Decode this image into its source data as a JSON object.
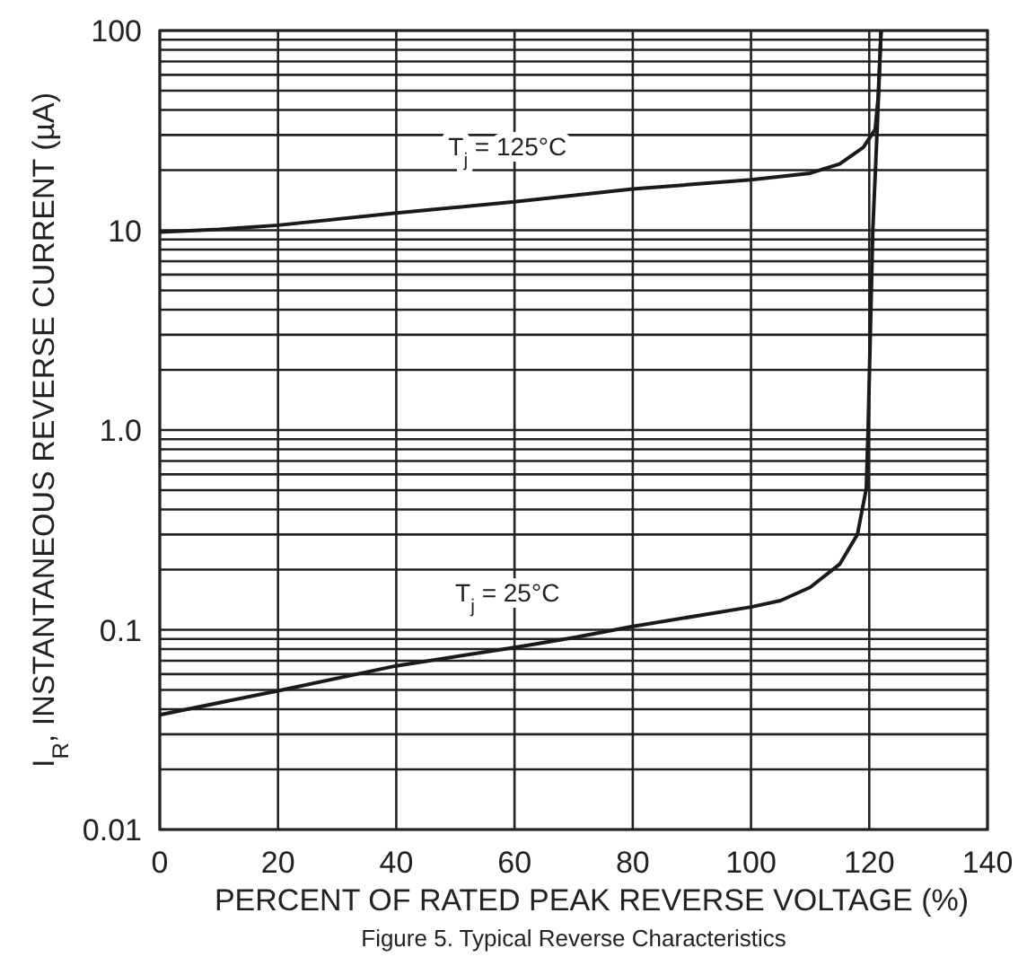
{
  "chart_data": {
    "type": "line",
    "xlabel": "PERCENT OF RATED PEAK REVERSE VOLTAGE (%)",
    "ylabel": "I$_{R}$, INSTANTANEOUS REVERSE CURRENT (µA)",
    "log": "y",
    "grid": true,
    "xlim": [
      0,
      140
    ],
    "ylim": [
      0.01,
      100
    ],
    "xticks": [
      0,
      20,
      40,
      60,
      80,
      100,
      120,
      140
    ],
    "yticks": [
      0.01,
      0.1,
      {
        "value": 1,
        "label": "1.0"
      },
      10,
      100
    ],
    "line_style": "solid",
    "marker": "none",
    "series": [
      {
        "name": "T$_{j}$ = 125°C",
        "color": "#1a1a1a",
        "x": [
          0,
          10,
          20,
          40,
          60,
          80,
          100,
          110,
          115,
          119,
          121,
          121.5,
          122
        ],
        "values": [
          9.8,
          10.1,
          10.6,
          12.2,
          13.9,
          16.1,
          17.9,
          19.3,
          21.5,
          26,
          32,
          46,
          100
        ]
      },
      {
        "name": "T$_{j}$ = 25°C",
        "color": "#1a1a1a",
        "x": [
          0,
          20,
          40,
          60,
          70,
          80,
          100,
          105,
          110,
          115,
          118,
          119.5,
          119.8,
          120.6,
          121.3,
          122
        ],
        "values": [
          0.0375,
          0.0495,
          0.066,
          0.0815,
          0.0914,
          0.104,
          0.13,
          0.14,
          0.163,
          0.213,
          0.3,
          0.51,
          1,
          10,
          30,
          100
        ]
      }
    ],
    "annotations": [
      "Figure 5. Typical Reverse Characteristics"
    ]
  }
}
